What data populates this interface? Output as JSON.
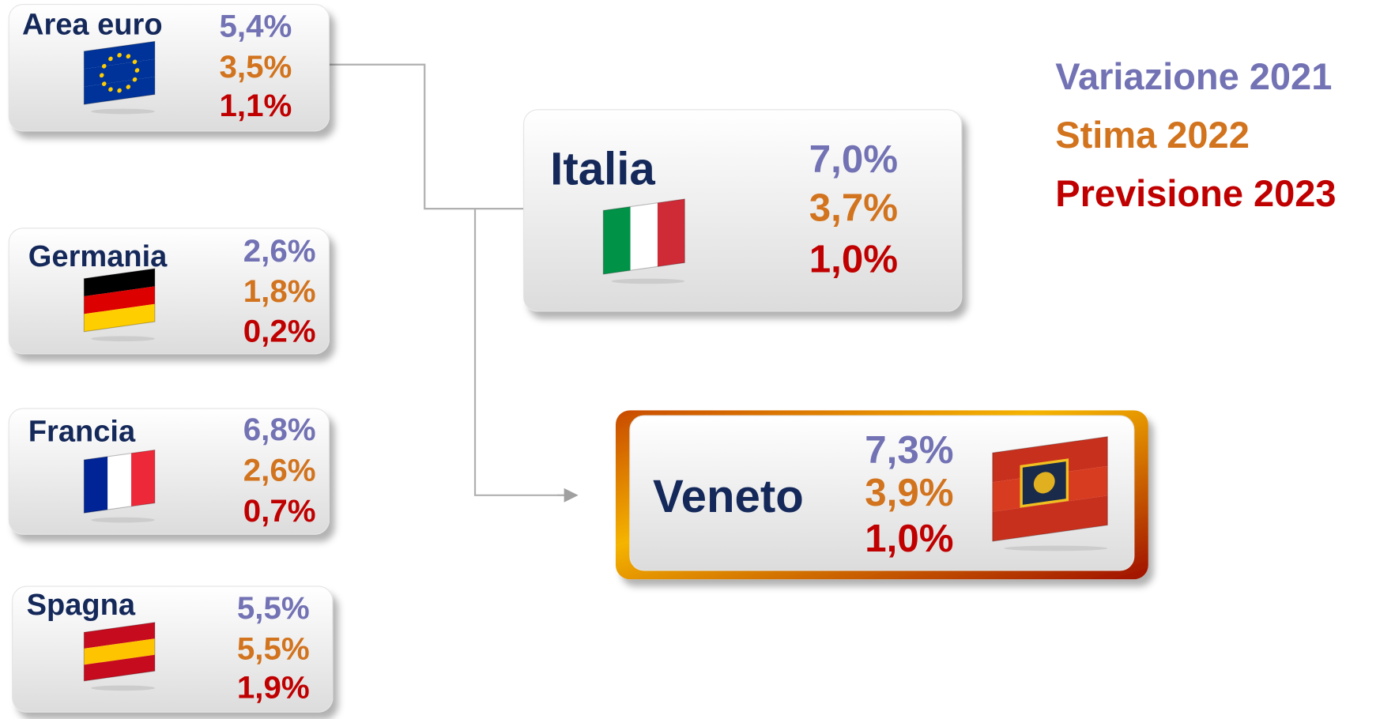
{
  "nodes": [
    {
      "label": "Area euro",
      "values": [
        "5,4%",
        "3,5%",
        "1,1%"
      ]
    },
    {
      "label": "Germania",
      "values": [
        "2,6%",
        "1,8%",
        "0,2%"
      ]
    },
    {
      "label": "Francia",
      "values": [
        "6,8%",
        "2,6%",
        "0,7%"
      ]
    },
    {
      "label": "Spagna",
      "values": [
        "5,5%",
        "5,5%",
        "1,9%"
      ]
    },
    {
      "label": "Italia",
      "values": [
        "7,0%",
        "3,7%",
        "1,0%"
      ]
    },
    {
      "label": "Veneto",
      "values": [
        "7,3%",
        "3,9%",
        "1,0%"
      ]
    }
  ],
  "legend": [
    {
      "label": "Variazione 2021",
      "color": "#7272b4"
    },
    {
      "label": "Stima 2022",
      "color": "#d2731e"
    },
    {
      "label": "Previsione 2023",
      "color": "#c00000"
    }
  ]
}
